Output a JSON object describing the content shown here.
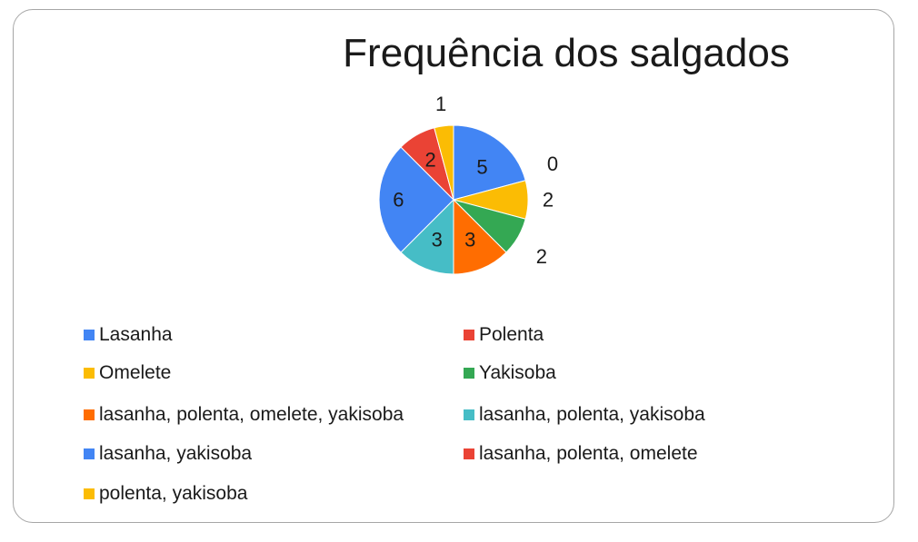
{
  "chart_data": {
    "type": "pie",
    "title": "Frequência dos salgados",
    "categories": [
      "Lasanha",
      "Polenta",
      "Omelete",
      "Yakisoba",
      "lasanha, polenta, omelete, yakisoba",
      "lasanha, polenta, yakisoba",
      "lasanha, yakisoba",
      "lasanha, polenta, omelete",
      "polenta, yakisoba"
    ],
    "values": [
      5,
      0,
      2,
      2,
      3,
      3,
      6,
      2,
      1
    ],
    "colors": [
      "#4285f4",
      "#ea4335",
      "#fbbc04",
      "#34a853",
      "#ff6d01",
      "#46bdc6",
      "#4285f4",
      "#ea4335",
      "#fbbc04"
    ],
    "data_labels": [
      "5",
      "0",
      "2",
      "2",
      "3",
      "3",
      "6",
      "2",
      "1"
    ],
    "legend": "bottom",
    "legend_columns": 2
  }
}
